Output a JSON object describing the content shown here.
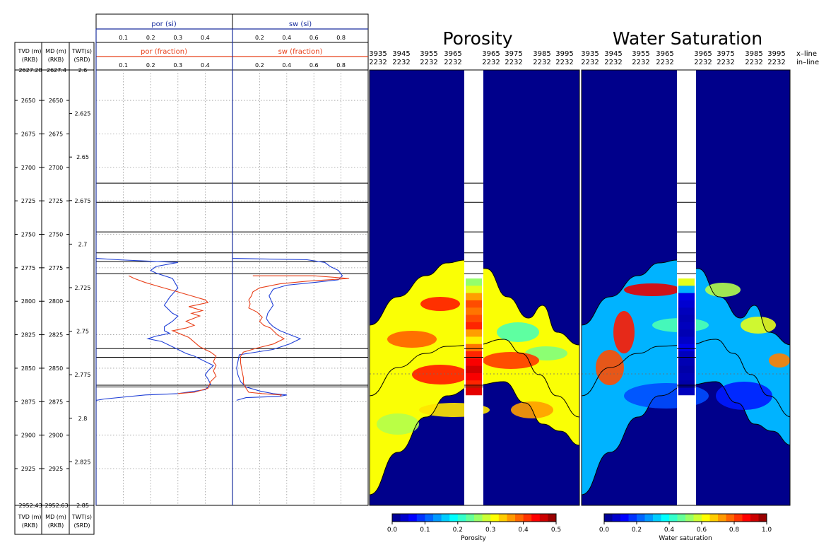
{
  "depth_tracks": {
    "tvd": {
      "header": "TVD (m)",
      "sub": "(RKB)",
      "top": "2627.28",
      "bottom": "2952.43",
      "ticks": [
        "2650",
        "2675",
        "2700",
        "2725",
        "2750",
        "2775",
        "2800",
        "2825",
        "2850",
        "2875",
        "2900",
        "2925"
      ]
    },
    "md": {
      "header": "MD (m)",
      "sub": "(RKB)",
      "top": "2627.4",
      "bottom": "2952.63",
      "ticks": [
        "2650",
        "2675",
        "2700",
        "2725",
        "2750",
        "2775",
        "2800",
        "2825",
        "2850",
        "2875",
        "2900",
        "2925"
      ]
    },
    "twt": {
      "header": "TWT(s)",
      "sub": "(SRD)",
      "ticks": [
        "2.6",
        "2.625",
        "2.65",
        "2.675",
        "2.7",
        "2.725",
        "2.75",
        "2.775",
        "2.8",
        "2.825",
        "2.85"
      ]
    }
  },
  "colors": {
    "por_si": "#1f3fd6",
    "por_fraction": "#e8401a",
    "frame": "#000000",
    "track_axis": "#1a2f9e",
    "seismic_background": "#00008b"
  },
  "chart_data": [
    {
      "type": "line",
      "track": "porosity-log",
      "series": [
        {
          "name": "por (si)",
          "color": "#1f3fd6",
          "x": [
            0.0,
            0.0,
            0.08,
            0.3,
            0.22,
            0.2,
            0.22,
            0.28,
            0.3,
            0.27,
            0.25,
            0.28,
            0.3,
            0.28,
            0.25,
            0.25,
            0.27,
            0.22,
            0.19,
            0.24,
            0.3,
            0.33,
            0.36,
            0.4,
            0.43,
            0.41,
            0.4,
            0.41,
            0.42,
            0.4,
            0.3,
            0.18,
            0.03,
            0.0
          ],
          "depth": [
            2766,
            2768,
            2769,
            2771,
            2774,
            2777,
            2779,
            2783,
            2790,
            2797,
            2803,
            2809,
            2811,
            2815,
            2819,
            2822,
            2824,
            2826,
            2828,
            2830,
            2836,
            2839,
            2841,
            2845,
            2848,
            2852,
            2855,
            2858,
            2862,
            2866,
            2869,
            2870,
            2873,
            2874
          ]
        },
        {
          "name": "por (fraction)",
          "color": "#e8401a",
          "x": [
            0.12,
            0.14,
            0.18,
            0.23,
            0.3,
            0.35,
            0.4,
            0.41,
            0.34,
            0.39,
            0.35,
            0.38,
            0.33,
            0.36,
            0.33,
            0.28,
            0.34,
            0.38,
            0.42,
            0.44,
            0.43,
            0.44,
            0.43,
            0.44,
            0.42,
            0.41,
            0.36,
            0.3
          ],
          "depth": [
            2781,
            2783,
            2786,
            2789,
            2793,
            2796,
            2799,
            2801,
            2804,
            2807,
            2809,
            2811,
            2815,
            2818,
            2820,
            2822,
            2827,
            2834,
            2838,
            2841,
            2845,
            2848,
            2852,
            2856,
            2860,
            2865,
            2868,
            2869
          ]
        }
      ],
      "x_label": "por (si)",
      "x_label2": "por (fraction)",
      "x_ticks": [
        "0.1",
        "0.2",
        "0.3",
        "0.4"
      ],
      "xlim": [
        0.0,
        0.5
      ],
      "ylim": [
        2627.28,
        2952.43
      ],
      "grid": true
    },
    {
      "type": "line",
      "track": "saturation-log",
      "series": [
        {
          "name": "sw (si)",
          "color": "#1f3fd6",
          "x": [
            0.0,
            0.0,
            0.55,
            0.68,
            0.72,
            0.78,
            0.81,
            0.78,
            0.6,
            0.4,
            0.3,
            0.27,
            0.3,
            0.26,
            0.25,
            0.27,
            0.3,
            0.35,
            0.4,
            0.45,
            0.5,
            0.42,
            0.3,
            0.05,
            0.04,
            0.03,
            0.04,
            0.06,
            0.1,
            0.2,
            0.3,
            0.4,
            0.35,
            0.1,
            0.03
          ],
          "depth": [
            2766,
            2768,
            2769,
            2771,
            2774,
            2777,
            2781,
            2784,
            2786,
            2788,
            2791,
            2796,
            2803,
            2809,
            2813,
            2816,
            2819,
            2822,
            2824,
            2826,
            2828,
            2832,
            2836,
            2840,
            2845,
            2850,
            2855,
            2860,
            2864,
            2867,
            2869,
            2870,
            2871,
            2872,
            2874
          ]
        },
        {
          "name": "sw (fraction)",
          "color": "#e8401a",
          "x": [
            0.15,
            0.6,
            0.86,
            0.55,
            0.35,
            0.2,
            0.15,
            0.14,
            0.12,
            0.13,
            0.12,
            0.18,
            0.22,
            0.2,
            0.23,
            0.28,
            0.3,
            0.33,
            0.38,
            0.3,
            0.18,
            0.08,
            0.06,
            0.06,
            0.07,
            0.08,
            0.08,
            0.1,
            0.12,
            0.22,
            0.36,
            0.35
          ],
          "depth": [
            2781,
            2781,
            2783,
            2785,
            2787,
            2790,
            2793,
            2796,
            2799,
            2802,
            2805,
            2808,
            2812,
            2815,
            2818,
            2820,
            2822,
            2825,
            2828,
            2832,
            2835,
            2838,
            2841,
            2846,
            2852,
            2857,
            2861,
            2865,
            2868,
            2869,
            2870,
            2871
          ]
        }
      ],
      "x_label": "sw (si)",
      "x_label2": "sw (fraction)",
      "x_ticks": [
        "0.2",
        "0.4",
        "0.6",
        "0.8"
      ],
      "xlim": [
        0.0,
        1.0
      ],
      "ylim": [
        2627.28,
        2952.43
      ],
      "grid": true
    },
    {
      "type": "heatmap",
      "panel": "porosity-section",
      "title": "Porosity",
      "xline_ticks": [
        "3935",
        "3945",
        "3955",
        "3965",
        "3965",
        "3975",
        "3985",
        "3995"
      ],
      "inline_ticks": [
        "2232",
        "2232",
        "2232",
        "2232",
        "2232",
        "2232",
        "2232",
        "2232"
      ],
      "axis_labels": [
        "x–line",
        "in–line"
      ],
      "colorbar": {
        "label": "Porosity",
        "ticks": [
          "0.0",
          "0.1",
          "0.2",
          "0.3",
          "0.4",
          "0.5"
        ],
        "range": [
          0.0,
          0.5
        ]
      },
      "well_column_values": [
        0.26,
        0.3,
        0.36,
        0.4,
        0.38,
        0.4,
        0.42,
        0.36,
        0.32,
        0.38,
        0.42,
        0.44,
        0.46,
        0.44,
        0.42,
        0.45
      ],
      "well_column_depth": [
        2783,
        2870
      ]
    },
    {
      "type": "heatmap",
      "panel": "saturation-section",
      "title": "Water Saturation",
      "xline_ticks": [
        "3935",
        "3945",
        "3955",
        "3965",
        "3965",
        "3975",
        "3985",
        "3995"
      ],
      "inline_ticks": [
        "2232",
        "2232",
        "2232",
        "2232",
        "2232",
        "2232",
        "2232",
        "2232"
      ],
      "colorbar": {
        "label": "Water saturation",
        "ticks": [
          "0.0",
          "0.2",
          "0.4",
          "0.6",
          "0.8",
          "1.0"
        ],
        "range": [
          0.0,
          1.0
        ]
      },
      "well_column_values": [
        0.6,
        0.3,
        0.1,
        0.08,
        0.06,
        0.05,
        0.06,
        0.05,
        0.07,
        0.1,
        0.06,
        0.05,
        0.04,
        0.05,
        0.04,
        0.06
      ],
      "well_column_depth": [
        2783,
        2870
      ]
    }
  ],
  "horizons_twt": [
    2.665,
    2.676,
    2.693,
    2.705,
    2.71,
    2.717,
    2.76,
    2.765,
    2.781,
    2.782
  ]
}
